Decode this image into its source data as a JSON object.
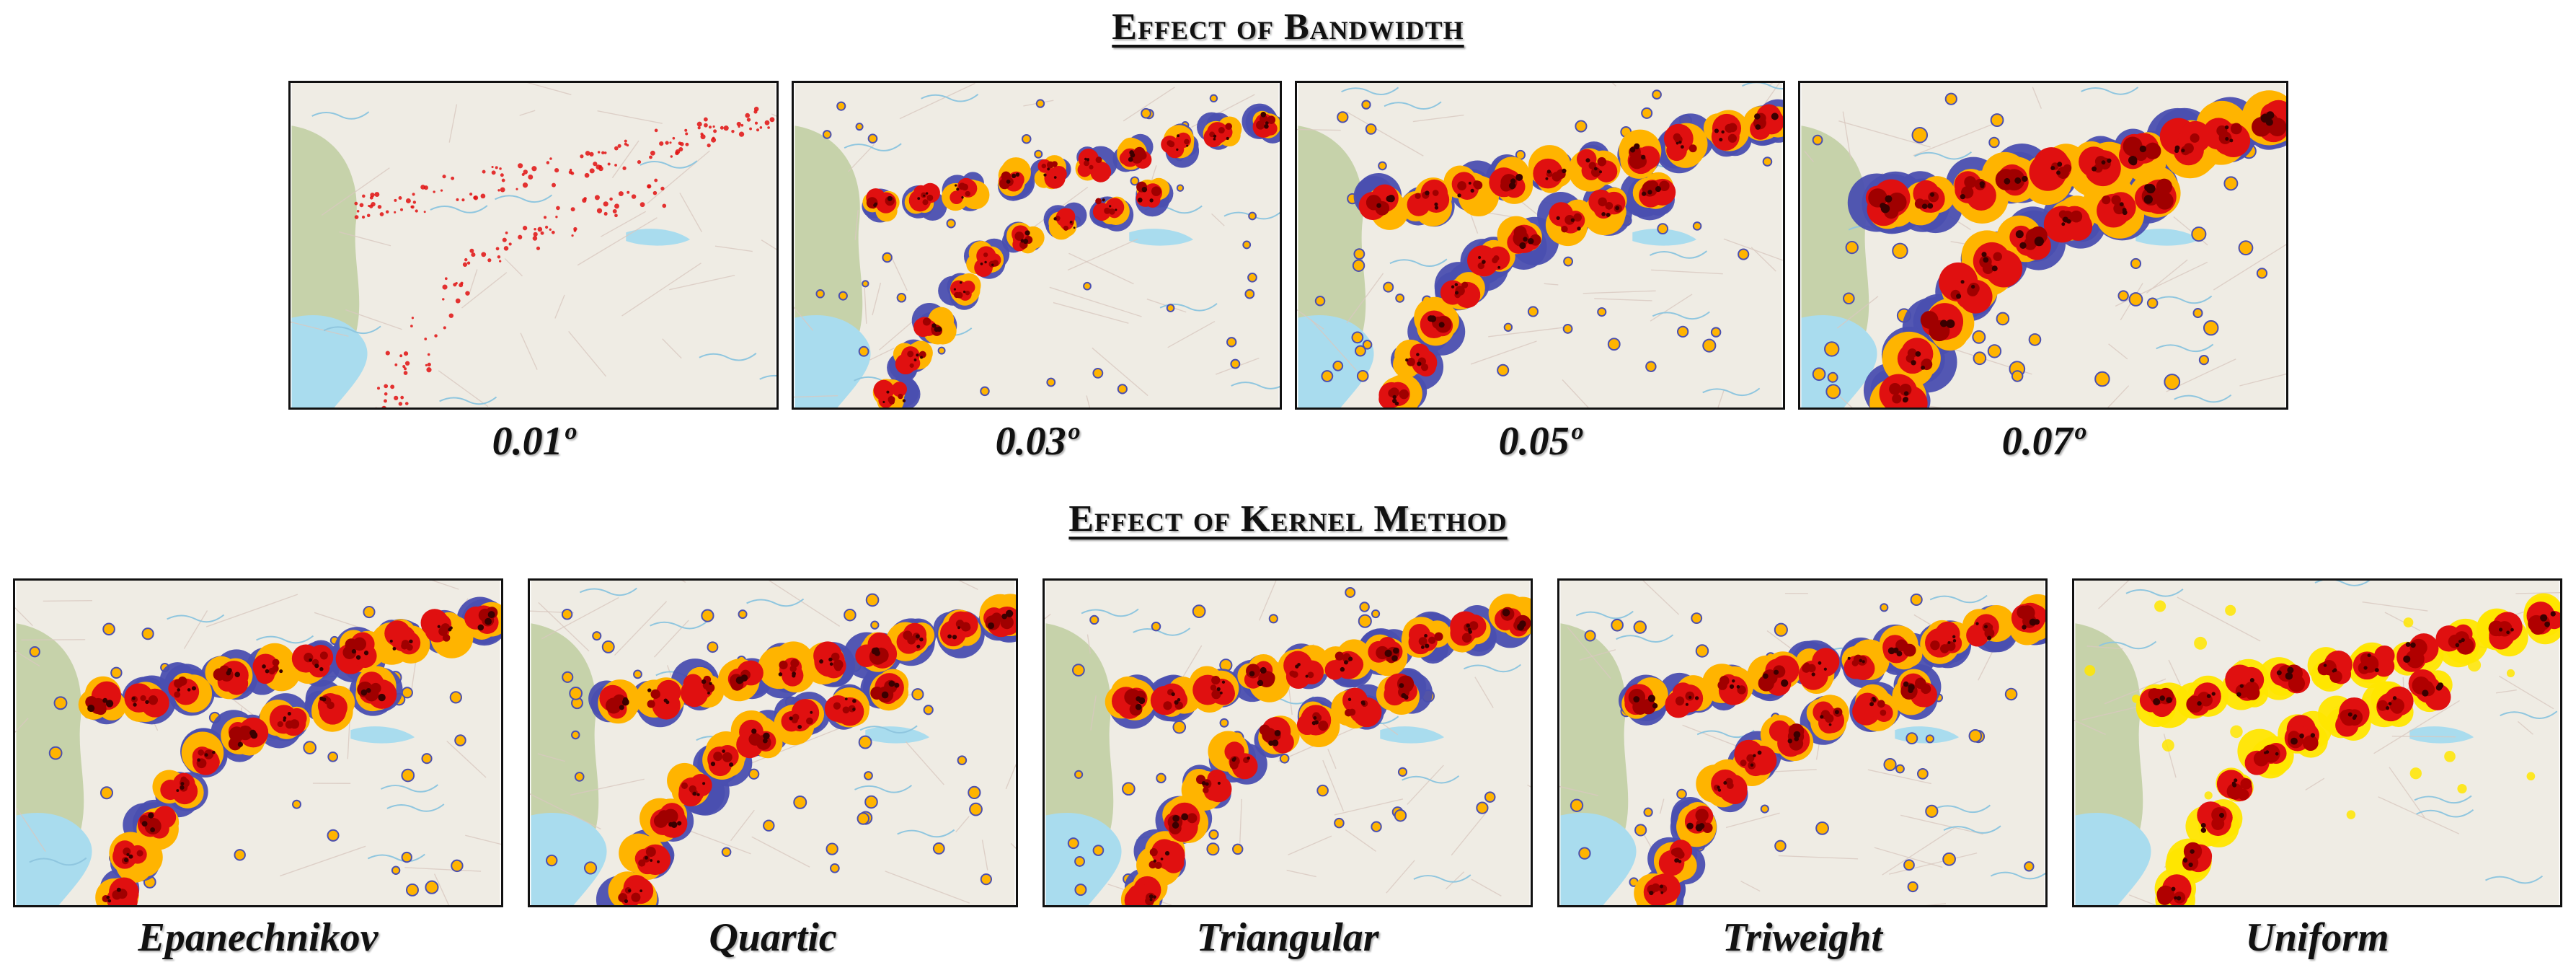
{
  "titles": {
    "bandwidth": "Effect of Bandwidth",
    "kernel": "Effect of Kernel Method"
  },
  "bandwidth_panels": [
    {
      "label": "0.01º",
      "level": 1
    },
    {
      "label": "0.03º",
      "level": 2
    },
    {
      "label": "0.05º",
      "level": 3
    },
    {
      "label": "0.07º",
      "level": 4
    }
  ],
  "kernel_panels": [
    {
      "label": "Epanechnikov",
      "style": "ring"
    },
    {
      "label": "Quartic",
      "style": "ring"
    },
    {
      "label": "Triangular",
      "style": "ring"
    },
    {
      "label": "Triweight",
      "style": "ring"
    },
    {
      "label": "Uniform",
      "style": "flat"
    }
  ],
  "colors": {
    "water": "#a9dcee",
    "land": "#efece4",
    "forest": "#b5c892",
    "hot_core": "#3a0000",
    "hot_mid": "#e01010",
    "hot_edge": "#ffb400",
    "contour": "#4a4fb0"
  }
}
